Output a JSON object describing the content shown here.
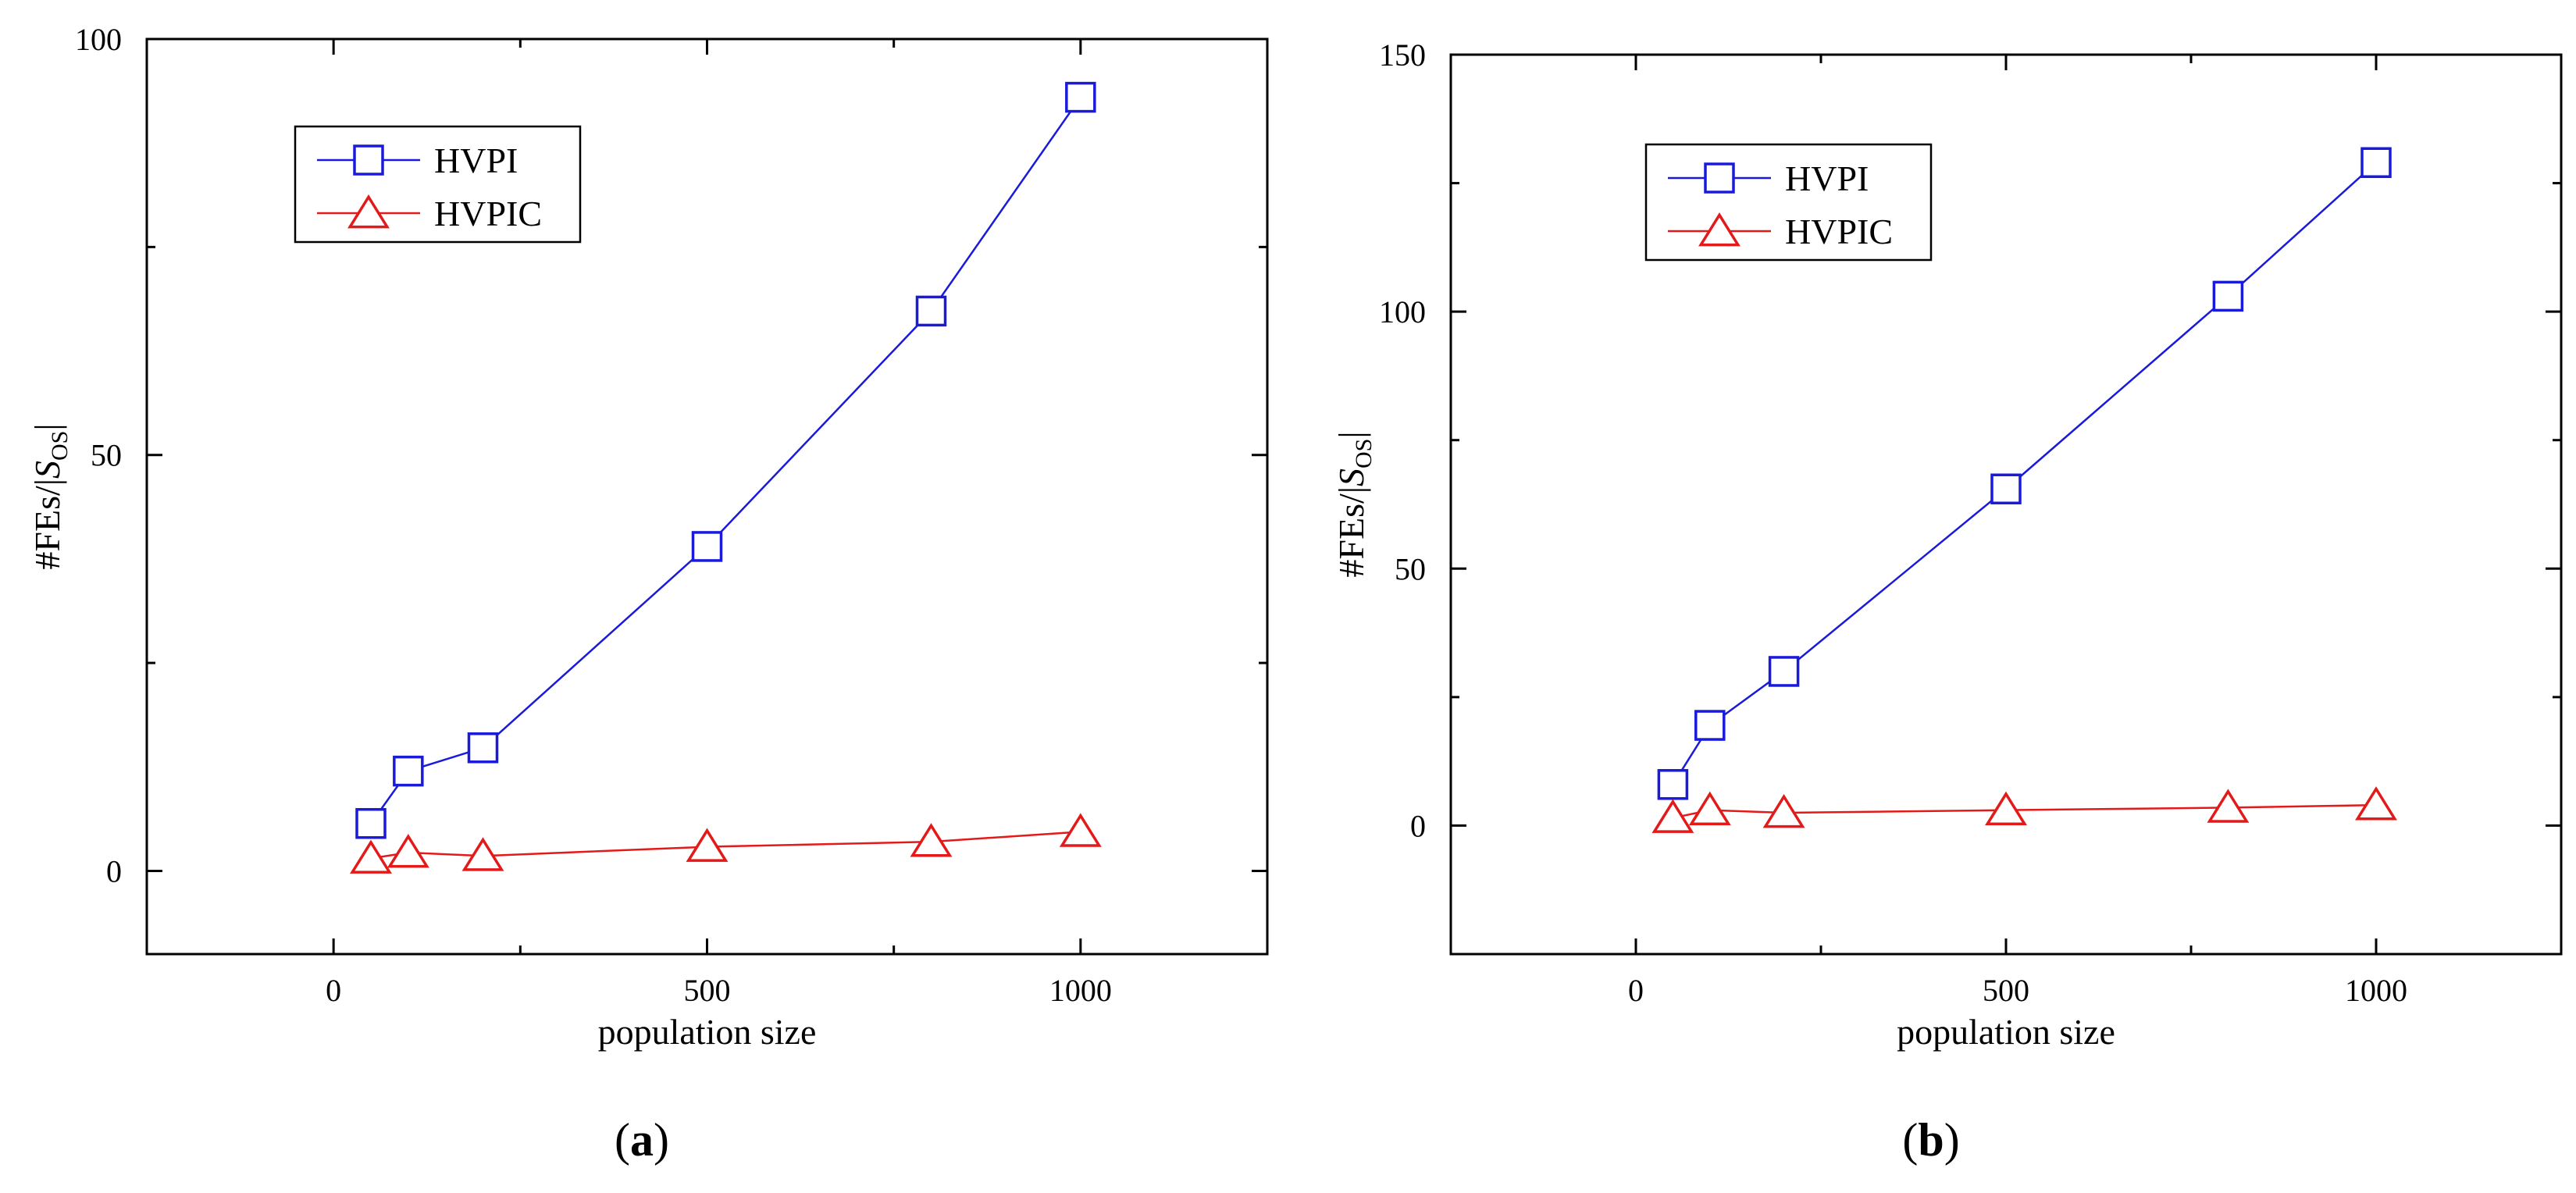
{
  "chart_data": [
    {
      "id": "a",
      "type": "line",
      "caption_open": "(",
      "caption_letter": "a",
      "caption_close": ")",
      "xlabel": "population size",
      "ylabel_main": "#FEs/|",
      "ylabel_italic": "S",
      "ylabel_sub": "OS",
      "ylabel_end": "|",
      "xlim": [
        -250,
        1250
      ],
      "ylim": [
        -10,
        100
      ],
      "xticks": [
        0,
        500,
        1000
      ],
      "xtick_labels": [
        "0",
        "500",
        "1000"
      ],
      "xminor": [
        -250,
        250,
        750,
        1250
      ],
      "yticks": [
        0,
        50,
        100
      ],
      "ytick_labels": [
        "0",
        "50",
        "100"
      ],
      "yminor": [
        25,
        75
      ],
      "grid": false,
      "legend_position": "top-left",
      "series": [
        {
          "name": "HVPI",
          "marker": "square",
          "color": "#1a1adb",
          "x": [
            50,
            100,
            200,
            500,
            800,
            1000
          ],
          "y": [
            5.7,
            12,
            14.8,
            39,
            67.3,
            93
          ]
        },
        {
          "name": "HVPIC",
          "marker": "triangle",
          "color": "#e31a1a",
          "x": [
            50,
            100,
            200,
            500,
            800,
            1000
          ],
          "y": [
            1.5,
            2.2,
            1.8,
            2.9,
            3.5,
            4.7
          ]
        }
      ]
    },
    {
      "id": "b",
      "type": "line",
      "caption_open": "(",
      "caption_letter": "b",
      "caption_close": ")",
      "xlabel": "population size",
      "ylabel_main": "#FEs/|",
      "ylabel_italic": "S",
      "ylabel_sub": "OS",
      "ylabel_end": "|",
      "xlim": [
        -250,
        1250
      ],
      "ylim": [
        -25,
        150
      ],
      "xticks": [
        0,
        500,
        1000
      ],
      "xtick_labels": [
        "0",
        "500",
        "1000"
      ],
      "xminor": [
        -250,
        250,
        750,
        1250
      ],
      "yticks": [
        0,
        50,
        100,
        150
      ],
      "ytick_labels": [
        "0",
        "50",
        "100",
        "150"
      ],
      "yminor": [
        25,
        75,
        125
      ],
      "grid": false,
      "legend_position": "top-left",
      "series": [
        {
          "name": "HVPI",
          "marker": "square",
          "color": "#1a1adb",
          "x": [
            50,
            100,
            200,
            500,
            800,
            1000
          ],
          "y": [
            8,
            19.5,
            30,
            65.5,
            103,
            129
          ]
        },
        {
          "name": "HVPIC",
          "marker": "triangle",
          "color": "#e31a1a",
          "x": [
            50,
            100,
            200,
            500,
            800,
            1000
          ],
          "y": [
            1.5,
            3,
            2.5,
            3,
            3.5,
            4
          ]
        }
      ]
    }
  ]
}
